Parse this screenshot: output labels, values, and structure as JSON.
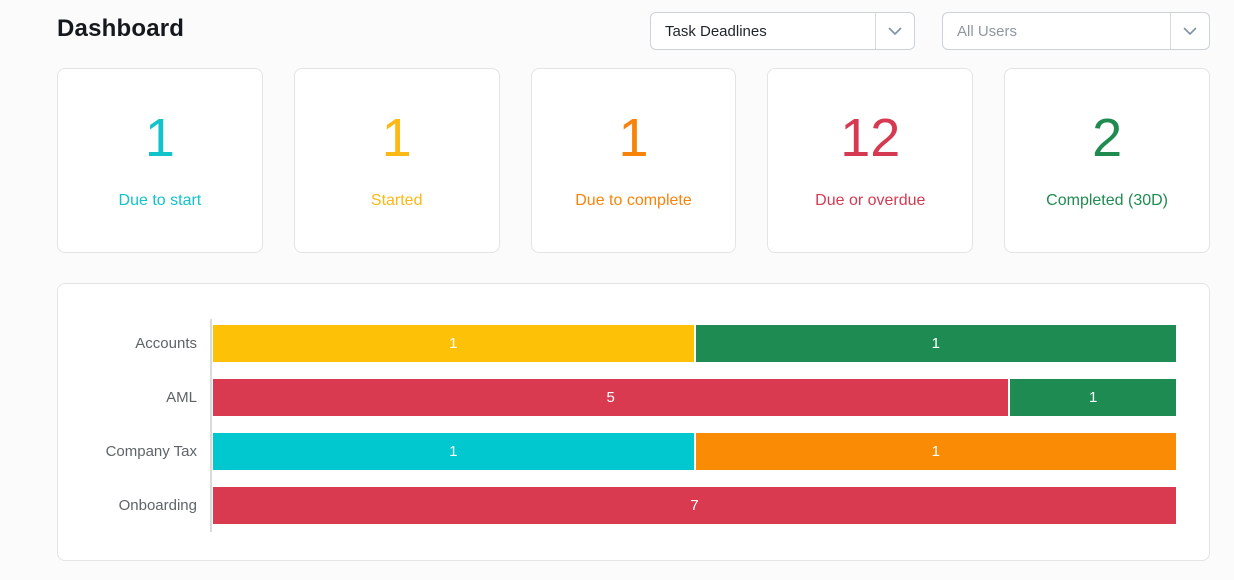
{
  "header": {
    "title": "Dashboard",
    "report_select": {
      "value": "Task Deadlines"
    },
    "users_select": {
      "value": "All Users"
    }
  },
  "icons": {
    "chevron_down": "v-chevron"
  },
  "stat_cards": [
    {
      "value": "1",
      "label": "Due to start",
      "color": "#12c3ca"
    },
    {
      "value": "1",
      "label": "Started",
      "color": "#fcb915"
    },
    {
      "value": "1",
      "label": "Due to complete",
      "color": "#f8830b"
    },
    {
      "value": "12",
      "label": "Due or overdue",
      "color": "#d63a52"
    },
    {
      "value": "2",
      "label": "Completed (30D)",
      "color": "#1f8b50"
    }
  ],
  "chart_data": {
    "type": "bar",
    "orientation": "horizontal",
    "stacked": true,
    "legend_position": "none",
    "title": "",
    "xlabel": "",
    "ylabel": "",
    "grid": false,
    "categories": [
      "Accounts",
      "AML",
      "Company Tax",
      "Onboarding"
    ],
    "rows": [
      {
        "category": "Accounts",
        "segments": [
          {
            "value": 1,
            "color": "#fdc107"
          },
          {
            "value": 1,
            "color": "#1e8b52"
          }
        ]
      },
      {
        "category": "AML",
        "segments": [
          {
            "value": 5,
            "color": "#d93a4f"
          },
          {
            "value": 1,
            "color": "#1e8b52"
          }
        ]
      },
      {
        "category": "Company Tax",
        "segments": [
          {
            "value": 1,
            "color": "#00c8ce"
          },
          {
            "value": 1,
            "color": "#f98b05"
          }
        ]
      },
      {
        "category": "Onboarding",
        "segments": [
          {
            "value": 7,
            "color": "#d93a4f"
          }
        ]
      }
    ]
  }
}
